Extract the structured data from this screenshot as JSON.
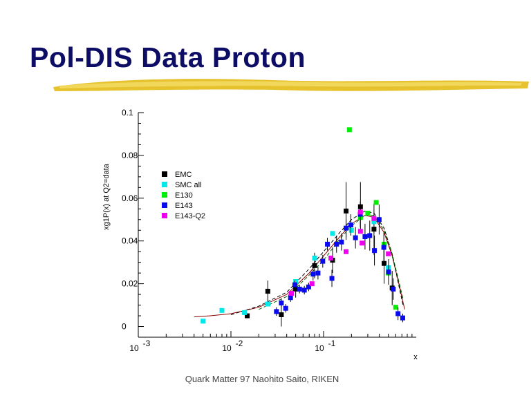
{
  "slide": {
    "title": "Pol-DIS Data Proton",
    "footer": "Quark Matter 97  Naohito Saito, RIKEN",
    "title_color": "#0d0d66",
    "brush_color": "#e6c22e"
  },
  "chart_data": {
    "type": "scatter",
    "title": "",
    "xlabel": "x",
    "ylabel": "xg1P(x) at Q2=data",
    "x_scale": "log",
    "xlim": [
      0.001,
      1
    ],
    "ylim": [
      -0.005,
      0.1
    ],
    "x_ticks": [
      {
        "value": 0.001,
        "label": "10",
        "exp": "-3"
      },
      {
        "value": 0.01,
        "label": "10",
        "exp": "-2"
      },
      {
        "value": 0.1,
        "label": "10",
        "exp": "-1"
      }
    ],
    "y_ticks": [
      {
        "value": 0,
        "label": "0"
      },
      {
        "value": 0.02,
        "label": "0.02"
      },
      {
        "value": 0.04,
        "label": "0.04"
      },
      {
        "value": 0.06,
        "label": "0.06"
      },
      {
        "value": 0.08,
        "label": "0.08"
      },
      {
        "value": 0.1,
        "label": "0.1"
      }
    ],
    "legend_position": "upper-left",
    "series": [
      {
        "name": "EMC",
        "color": "#000000",
        "points": [
          {
            "x": 0.015,
            "y": 0.005,
            "err": 0.001
          },
          {
            "x": 0.025,
            "y": 0.0165,
            "err": 0.005
          },
          {
            "x": 0.035,
            "y": 0.0055,
            "err": 0.0055
          },
          {
            "x": 0.05,
            "y": 0.0175,
            "err": 0.004
          },
          {
            "x": 0.08,
            "y": 0.0285,
            "err": 0.006
          },
          {
            "x": 0.125,
            "y": 0.031,
            "err": 0.006
          },
          {
            "x": 0.175,
            "y": 0.054,
            "err": 0.0135
          },
          {
            "x": 0.25,
            "y": 0.056,
            "err": 0.0115
          },
          {
            "x": 0.35,
            "y": 0.0455,
            "err": 0.012
          },
          {
            "x": 0.45,
            "y": 0.0295,
            "err": 0.0095
          },
          {
            "x": 0.55,
            "y": 0.018,
            "err": 0.008
          }
        ]
      },
      {
        "name": "SMC all",
        "color": "#00e8e8",
        "points": [
          {
            "x": 0.005,
            "y": 0.0025,
            "err": 0
          },
          {
            "x": 0.008,
            "y": 0.0075,
            "err": 0
          },
          {
            "x": 0.014,
            "y": 0.0065,
            "err": 0
          },
          {
            "x": 0.025,
            "y": 0.0105,
            "err": 0
          },
          {
            "x": 0.05,
            "y": 0.021,
            "err": 0
          },
          {
            "x": 0.08,
            "y": 0.032,
            "err": 0
          },
          {
            "x": 0.125,
            "y": 0.0435,
            "err": 0
          },
          {
            "x": 0.2,
            "y": 0.045,
            "err": 0
          },
          {
            "x": 0.35,
            "y": 0.049,
            "err": 0
          },
          {
            "x": 0.5,
            "y": 0.0275,
            "err": 0
          }
        ]
      },
      {
        "name": "E130",
        "color": "#00ee00",
        "points": [
          {
            "x": 0.19,
            "y": 0.092,
            "err": 0
          },
          {
            "x": 0.25,
            "y": 0.051,
            "err": 0
          },
          {
            "x": 0.3,
            "y": 0.053,
            "err": 0
          },
          {
            "x": 0.37,
            "y": 0.058,
            "err": 0
          },
          {
            "x": 0.45,
            "y": 0.0385,
            "err": 0
          },
          {
            "x": 0.5,
            "y": 0.025,
            "err": 0
          },
          {
            "x": 0.6,
            "y": 0.009,
            "err": 0
          }
        ]
      },
      {
        "name": "E143",
        "color": "#0a0aee",
        "points": [
          {
            "x": 0.031,
            "y": 0.007,
            "err": 0.002
          },
          {
            "x": 0.035,
            "y": 0.011,
            "err": 0.002
          },
          {
            "x": 0.039,
            "y": 0.0085,
            "err": 0.002
          },
          {
            "x": 0.044,
            "y": 0.0135,
            "err": 0.002
          },
          {
            "x": 0.049,
            "y": 0.0195,
            "err": 0.002
          },
          {
            "x": 0.055,
            "y": 0.0175,
            "err": 0.002
          },
          {
            "x": 0.062,
            "y": 0.017,
            "err": 0.002
          },
          {
            "x": 0.069,
            "y": 0.0185,
            "err": 0.002
          },
          {
            "x": 0.077,
            "y": 0.0245,
            "err": 0.003
          },
          {
            "x": 0.087,
            "y": 0.025,
            "err": 0.003
          },
          {
            "x": 0.098,
            "y": 0.0305,
            "err": 0.003
          },
          {
            "x": 0.11,
            "y": 0.0385,
            "err": 0.003
          },
          {
            "x": 0.123,
            "y": 0.0225,
            "err": 0.004
          },
          {
            "x": 0.138,
            "y": 0.0385,
            "err": 0.004
          },
          {
            "x": 0.156,
            "y": 0.0395,
            "err": 0.004
          },
          {
            "x": 0.175,
            "y": 0.046,
            "err": 0.004
          },
          {
            "x": 0.197,
            "y": 0.0475,
            "err": 0.005
          },
          {
            "x": 0.221,
            "y": 0.0415,
            "err": 0.005
          },
          {
            "x": 0.249,
            "y": 0.0525,
            "err": 0.006
          },
          {
            "x": 0.28,
            "y": 0.042,
            "err": 0.006
          },
          {
            "x": 0.315,
            "y": 0.0425,
            "err": 0.007
          },
          {
            "x": 0.354,
            "y": 0.0355,
            "err": 0.007
          },
          {
            "x": 0.398,
            "y": 0.05,
            "err": 0.007
          },
          {
            "x": 0.447,
            "y": 0.037,
            "err": 0.007
          },
          {
            "x": 0.503,
            "y": 0.0255,
            "err": 0.006
          },
          {
            "x": 0.565,
            "y": 0.0175,
            "err": 0.005
          },
          {
            "x": 0.636,
            "y": 0.006,
            "err": 0.003
          },
          {
            "x": 0.715,
            "y": 0.004,
            "err": 0.002
          }
        ]
      },
      {
        "name": "E143-Q2",
        "color": "#ee00ee",
        "points": [
          {
            "x": 0.045,
            "y": 0.0155,
            "err": 0
          },
          {
            "x": 0.075,
            "y": 0.02,
            "err": 0
          },
          {
            "x": 0.12,
            "y": 0.032,
            "err": 0
          },
          {
            "x": 0.175,
            "y": 0.035,
            "err": 0
          },
          {
            "x": 0.25,
            "y": 0.0535,
            "err": 0
          },
          {
            "x": 0.25,
            "y": 0.0445,
            "err": 0
          },
          {
            "x": 0.26,
            "y": 0.039,
            "err": 0
          },
          {
            "x": 0.35,
            "y": 0.0505,
            "err": 0
          },
          {
            "x": 0.5,
            "y": 0.034,
            "err": 0
          }
        ]
      }
    ],
    "fit_curves": [
      {
        "style": "solid",
        "color": "#8b0000",
        "points": [
          [
            0.004,
            0.0045
          ],
          [
            0.006,
            0.005
          ],
          [
            0.01,
            0.006
          ],
          [
            0.02,
            0.009
          ],
          [
            0.04,
            0.015
          ],
          [
            0.07,
            0.025
          ],
          [
            0.1,
            0.033
          ],
          [
            0.15,
            0.042
          ],
          [
            0.2,
            0.048
          ],
          [
            0.28,
            0.052
          ],
          [
            0.35,
            0.051
          ],
          [
            0.45,
            0.044
          ],
          [
            0.55,
            0.033
          ],
          [
            0.65,
            0.02
          ],
          [
            0.75,
            0.008
          ]
        ]
      },
      {
        "style": "dashed",
        "color": "#000000",
        "points": [
          [
            0.01,
            0.0055
          ],
          [
            0.02,
            0.0095
          ],
          [
            0.04,
            0.016
          ],
          [
            0.07,
            0.027
          ],
          [
            0.1,
            0.035
          ],
          [
            0.15,
            0.044
          ],
          [
            0.2,
            0.05
          ],
          [
            0.28,
            0.054
          ],
          [
            0.35,
            0.053
          ],
          [
            0.45,
            0.046
          ],
          [
            0.55,
            0.034
          ],
          [
            0.65,
            0.019
          ],
          [
            0.72,
            0.01
          ]
        ]
      },
      {
        "style": "dashed",
        "color": "#006400",
        "points": [
          [
            0.02,
            0.008
          ],
          [
            0.04,
            0.014
          ],
          [
            0.07,
            0.024
          ],
          [
            0.1,
            0.031
          ],
          [
            0.15,
            0.041
          ],
          [
            0.2,
            0.047
          ],
          [
            0.28,
            0.052
          ],
          [
            0.35,
            0.052
          ],
          [
            0.45,
            0.045
          ],
          [
            0.55,
            0.034
          ],
          [
            0.65,
            0.021
          ],
          [
            0.72,
            0.013
          ]
        ]
      }
    ]
  }
}
